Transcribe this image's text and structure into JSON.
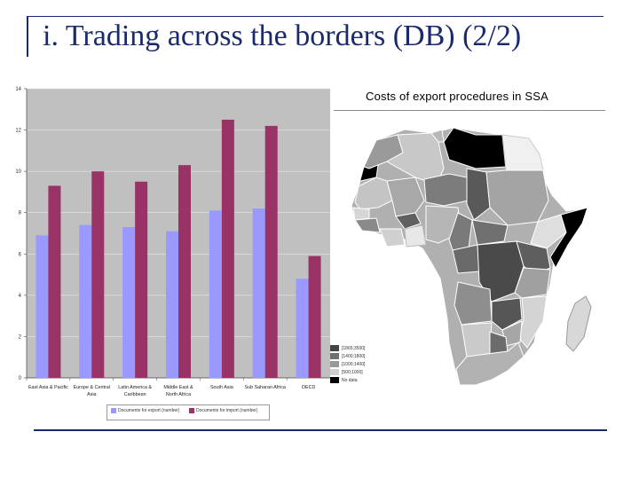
{
  "slide": {
    "title": "i. Trading across the borders (DB) (2/2)"
  },
  "map": {
    "title": "Costs of export procedures in SSA",
    "legend": [
      {
        "label": "[1865;3500]",
        "color": "#444444"
      },
      {
        "label": "[1400;1800]",
        "color": "#707070"
      },
      {
        "label": "[1000;1400]",
        "color": "#999999"
      },
      {
        "label": "[500;1000]",
        "color": "#cfcfcf"
      },
      {
        "label": "No data",
        "color": "#000000"
      }
    ]
  },
  "chart_data": {
    "type": "bar",
    "categories": [
      "East Asia & Pacific",
      "Europe & Central Asia",
      "Latin America & Caribbean",
      "Middle East & North Africa",
      "South Asia",
      "Sub Saharan Africa",
      "OECD"
    ],
    "category_lines": [
      [
        "East Asia & Pacific"
      ],
      [
        "Europe & Central",
        "Asia"
      ],
      [
        "Latin America &",
        "Caribbean"
      ],
      [
        "Middle East &",
        "North Africa"
      ],
      [
        "South Asia"
      ],
      [
        "Sub Saharan Africa"
      ],
      [
        "OECD"
      ]
    ],
    "series": [
      {
        "name": "Documents for export (number)",
        "values": [
          6.9,
          7.4,
          7.3,
          7.1,
          8.1,
          8.2,
          4.8
        ],
        "color": "#9999ff"
      },
      {
        "name": "Documents for import (number)",
        "values": [
          9.3,
          10.0,
          9.5,
          10.3,
          12.5,
          12.2,
          5.9
        ],
        "color": "#993366"
      }
    ],
    "ylim": [
      0,
      14
    ],
    "yticks": [
      "0",
      "2",
      "4",
      "6",
      "8",
      "10",
      "12",
      "14"
    ],
    "grid": true,
    "legend_position": "bottom",
    "plot_bg": "#c0c0c0",
    "title": "",
    "xlabel": "",
    "ylabel": ""
  }
}
